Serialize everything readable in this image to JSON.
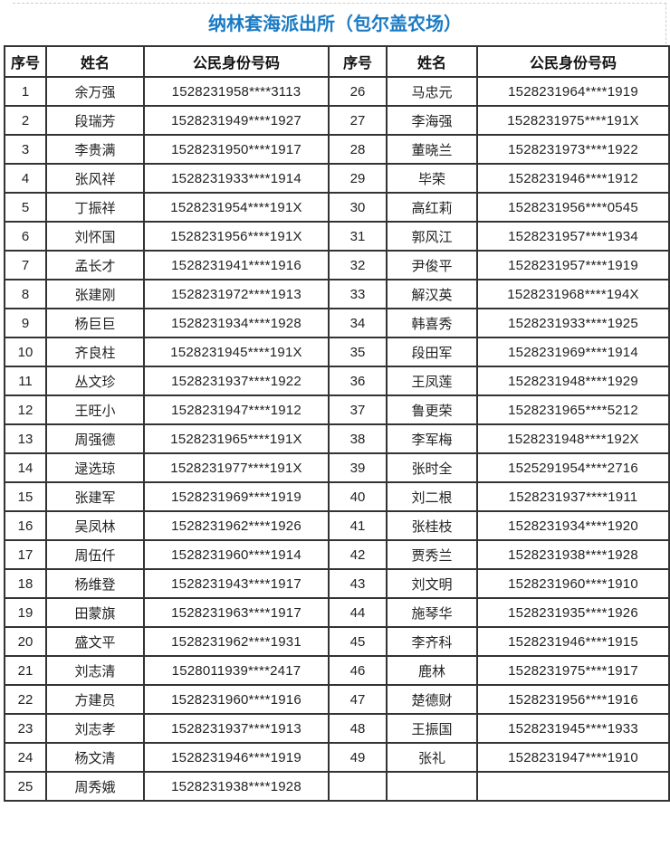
{
  "title": "纳林套海派出所（包尔盖农场）",
  "headers": {
    "index": "序号",
    "name": "姓名",
    "id": "公民身份号码"
  },
  "left": [
    [
      "1",
      "余万强",
      "1528231958****3113"
    ],
    [
      "2",
      "段瑞芳",
      "1528231949****1927"
    ],
    [
      "3",
      "李贵满",
      "1528231950****1917"
    ],
    [
      "4",
      "张风祥",
      "1528231933****1914"
    ],
    [
      "5",
      "丁振祥",
      "1528231954****191X"
    ],
    [
      "6",
      "刘怀国",
      "1528231956****191X"
    ],
    [
      "7",
      "孟长才",
      "1528231941****1916"
    ],
    [
      "8",
      "张建刚",
      "1528231972****1913"
    ],
    [
      "9",
      "杨巨巨",
      "1528231934****1928"
    ],
    [
      "10",
      "齐良柱",
      "1528231945****191X"
    ],
    [
      "11",
      "丛文珍",
      "1528231937****1922"
    ],
    [
      "12",
      "王旺小",
      "1528231947****1912"
    ],
    [
      "13",
      "周强德",
      "1528231965****191X"
    ],
    [
      "14",
      "逯选琼",
      "1528231977****191X"
    ],
    [
      "15",
      "张建军",
      "1528231969****1919"
    ],
    [
      "16",
      "吴凤林",
      "1528231962****1926"
    ],
    [
      "17",
      "周伍仟",
      "1528231960****1914"
    ],
    [
      "18",
      "杨维登",
      "1528231943****1917"
    ],
    [
      "19",
      "田蒙旗",
      "1528231963****1917"
    ],
    [
      "20",
      "盛文平",
      "1528231962****1931"
    ],
    [
      "21",
      "刘志清",
      "1528011939****2417"
    ],
    [
      "22",
      "方建员",
      "1528231960****1916"
    ],
    [
      "23",
      "刘志孝",
      "1528231937****1913"
    ],
    [
      "24",
      "杨文清",
      "1528231946****1919"
    ],
    [
      "25",
      "周秀娥",
      "1528231938****1928"
    ]
  ],
  "right": [
    [
      "26",
      "马忠元",
      "1528231964****1919"
    ],
    [
      "27",
      "李海强",
      "1528231975****191X"
    ],
    [
      "28",
      "董晓兰",
      "1528231973****1922"
    ],
    [
      "29",
      "毕荣",
      "1528231946****1912"
    ],
    [
      "30",
      "高红莉",
      "1528231956****0545"
    ],
    [
      "31",
      "郭风江",
      "1528231957****1934"
    ],
    [
      "32",
      "尹俊平",
      "1528231957****1919"
    ],
    [
      "33",
      "解汉英",
      "1528231968****194X"
    ],
    [
      "34",
      "韩喜秀",
      "1528231933****1925"
    ],
    [
      "35",
      "段田军",
      "1528231969****1914"
    ],
    [
      "36",
      "王凤莲",
      "1528231948****1929"
    ],
    [
      "37",
      "鲁更荣",
      "1528231965****5212"
    ],
    [
      "38",
      "李军梅",
      "1528231948****192X"
    ],
    [
      "39",
      "张时全",
      "1525291954****2716"
    ],
    [
      "40",
      "刘二根",
      "1528231937****1911"
    ],
    [
      "41",
      "张桂枝",
      "1528231934****1920"
    ],
    [
      "42",
      "贾秀兰",
      "1528231938****1928"
    ],
    [
      "43",
      "刘文明",
      "1528231960****1910"
    ],
    [
      "44",
      "施琴华",
      "1528231935****1926"
    ],
    [
      "45",
      "李齐科",
      "1528231946****1915"
    ],
    [
      "46",
      "鹿林",
      "1528231975****1917"
    ],
    [
      "47",
      "楚德财",
      "1528231956****1916"
    ],
    [
      "48",
      "王振国",
      "1528231945****1933"
    ],
    [
      "49",
      "张礼",
      "1528231947****1910"
    ],
    [
      "",
      "",
      ""
    ]
  ]
}
